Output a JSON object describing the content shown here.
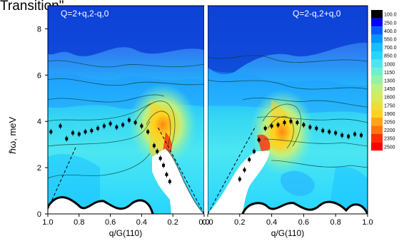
{
  "header_fragment": "Transition\".",
  "chart_data": {
    "type": "heatmap",
    "colormap": {
      "orientation": "vertical",
      "levels": [
        "100.0",
        "250.0",
        "400.0",
        "550.0",
        "700.0",
        "850.0",
        "1000",
        "1150",
        "1300",
        "1450",
        "1600",
        "1750",
        "1900",
        "2050",
        "2200",
        "2350",
        "2500"
      ],
      "colors": [
        "#000000",
        "#0000ff",
        "#005bff",
        "#0096ff",
        "#16bfff",
        "#27d6ff",
        "#4ce6f2",
        "#6ef0cc",
        "#97f0a6",
        "#bff080",
        "#d5ea5c",
        "#ebe03a",
        "#ffd21e",
        "#ffa414",
        "#ff740e",
        "#ff2c06",
        "#ff0000"
      ]
    },
    "ylabel": "ℏω, meV",
    "ylim": [
      0,
      9
    ],
    "y_ticks": [
      "0",
      "2",
      "4",
      "6",
      "8"
    ],
    "panels": [
      {
        "title": "Q=2+q,2-q,0",
        "xlabel": "q/G(110)",
        "xlim": [
          1.0,
          0.0
        ],
        "x_ticks": [
          "1.0",
          "0.8",
          "0.6",
          "0.4",
          "0.2",
          "0.0"
        ],
        "dispersion_points": [
          [
            0.98,
            3.55
          ],
          [
            0.92,
            3.8
          ],
          [
            0.88,
            3.25
          ],
          [
            0.84,
            3.5
          ],
          [
            0.8,
            3.45
          ],
          [
            0.76,
            3.55
          ],
          [
            0.72,
            3.6
          ],
          [
            0.68,
            3.7
          ],
          [
            0.64,
            3.8
          ],
          [
            0.6,
            3.9
          ],
          [
            0.56,
            3.75
          ],
          [
            0.52,
            3.85
          ],
          [
            0.48,
            4.05
          ],
          [
            0.44,
            3.95
          ],
          [
            0.4,
            3.8
          ],
          [
            0.36,
            3.55
          ],
          [
            0.32,
            2.95
          ],
          [
            0.3,
            2.7
          ],
          [
            0.28,
            2.4
          ],
          [
            0.26,
            2.1
          ],
          [
            0.24,
            1.7
          ],
          [
            0.22,
            1.4
          ]
        ],
        "dashed_line": [
          [
            0.0,
            0.0
          ],
          [
            0.3,
            3.8
          ]
        ],
        "dashed_line_left": [
          [
            1.0,
            0.2
          ],
          [
            0.82,
            2.9
          ]
        ]
      },
      {
        "title": "Q=2-q,2+q,0",
        "xlabel": "q/G(110)",
        "xlim": [
          0.0,
          1.0
        ],
        "x_ticks": [
          "0.0",
          "0.2",
          "0.4",
          "0.6",
          "0.8",
          "1.0"
        ],
        "dispersion_points": [
          [
            0.2,
            1.5
          ],
          [
            0.23,
            1.9
          ],
          [
            0.26,
            2.35
          ],
          [
            0.29,
            2.7
          ],
          [
            0.32,
            3.2
          ],
          [
            0.36,
            3.7
          ],
          [
            0.4,
            3.8
          ],
          [
            0.44,
            3.85
          ],
          [
            0.48,
            3.95
          ],
          [
            0.52,
            4.0
          ],
          [
            0.56,
            3.95
          ],
          [
            0.6,
            3.85
          ],
          [
            0.64,
            3.75
          ],
          [
            0.68,
            3.7
          ],
          [
            0.72,
            3.6
          ],
          [
            0.76,
            3.55
          ],
          [
            0.8,
            3.5
          ],
          [
            0.84,
            3.4
          ],
          [
            0.88,
            3.35
          ],
          [
            0.92,
            3.45
          ],
          [
            0.96,
            3.4
          ]
        ],
        "dashed_line": [
          [
            0.0,
            0.0
          ],
          [
            0.3,
            3.8
          ]
        ]
      }
    ]
  }
}
